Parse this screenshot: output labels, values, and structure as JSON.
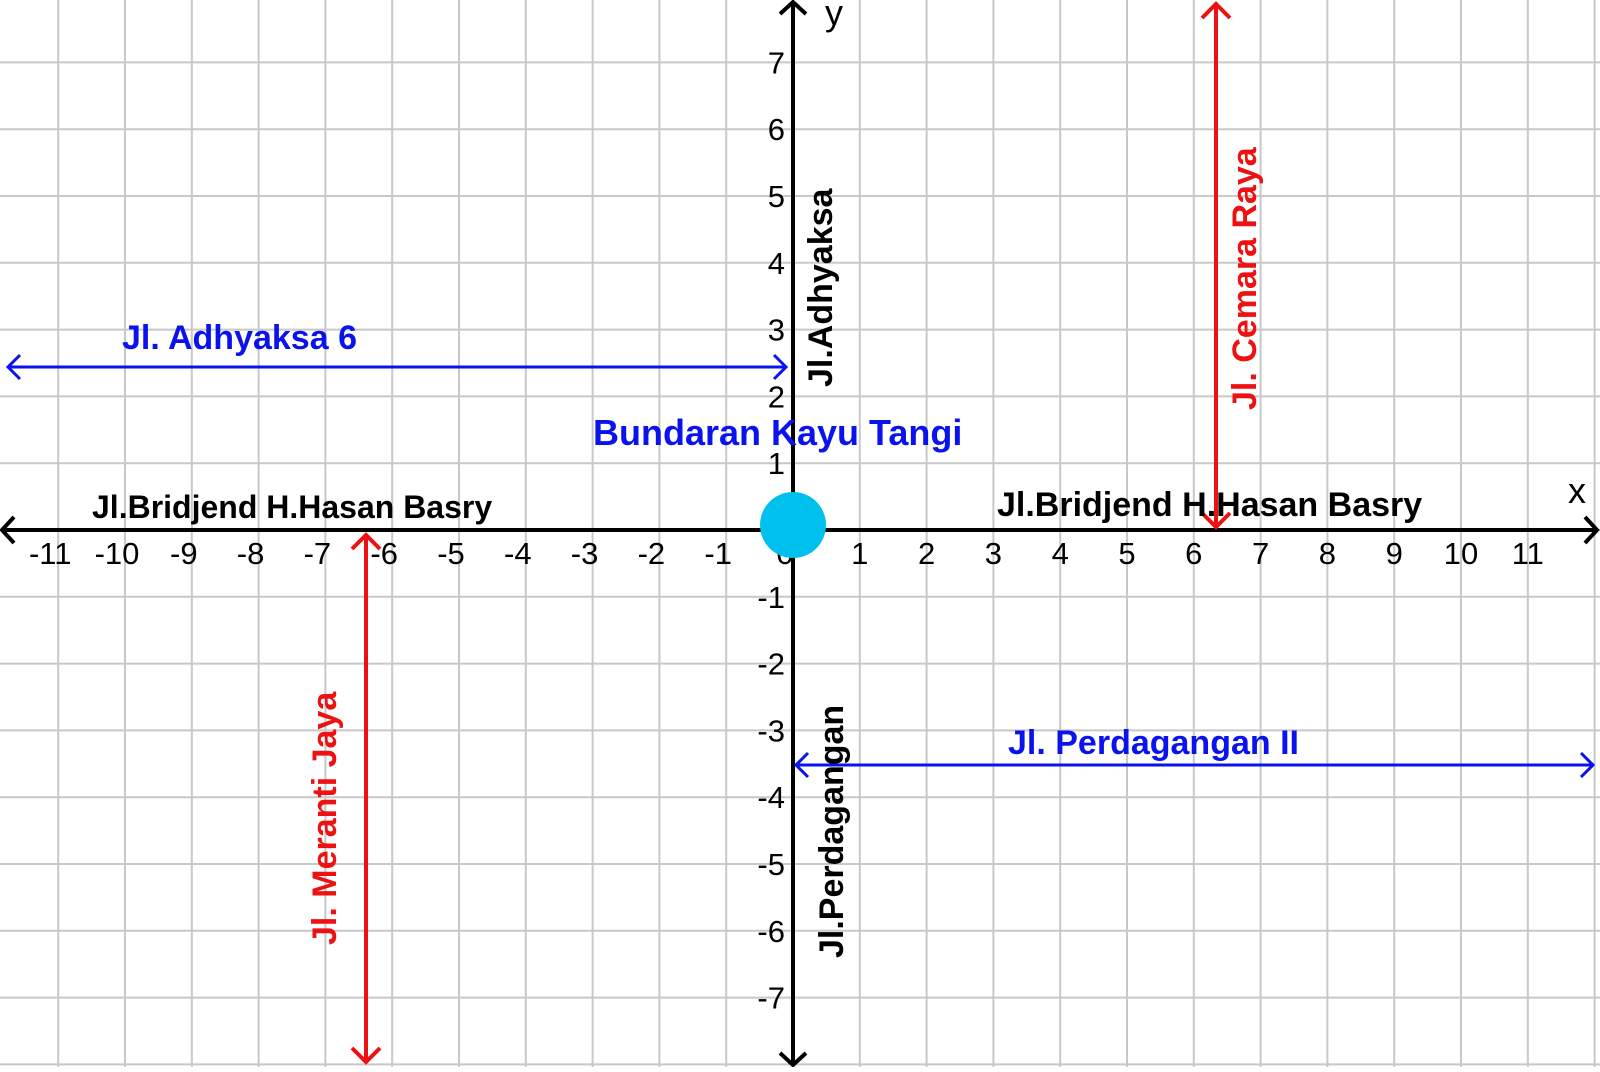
{
  "diagram": {
    "axes": {
      "x_label": "x",
      "y_label": "y",
      "x_ticks": [
        -11,
        -10,
        -9,
        -8,
        -7,
        -6,
        -5,
        -4,
        -3,
        -2,
        -1,
        0,
        1,
        2,
        3,
        4,
        5,
        6,
        7,
        8,
        9,
        10,
        11
      ],
      "y_ticks": [
        -7,
        -6,
        -5,
        -4,
        -3,
        -2,
        -1,
        1,
        2,
        3,
        4,
        5,
        6,
        7
      ],
      "x_range": [
        -12,
        12
      ],
      "y_range": [
        -8,
        8
      ],
      "grid": true
    },
    "colors": {
      "grid": "#c8c8c8",
      "axis": "#000000",
      "blue": "#0a12ee",
      "red": "#ee1111",
      "roundabout": "#00c0ee"
    },
    "roundabout": {
      "label": "Bundaran Kayu Tangi",
      "x": 0,
      "y": 0
    },
    "streets": {
      "x_axis_left": {
        "label": "Jl.Bridjend H.Hasan Basry"
      },
      "x_axis_right": {
        "label": "Jl.Bridjend H.Hasan Basry"
      },
      "y_axis_top": {
        "label": "Jl.Adhyaksa"
      },
      "y_axis_bottom": {
        "label": "Jl.Perdagangan"
      },
      "adhyaksa6": {
        "label": "Jl. Adhyaksa 6",
        "y": 2.45,
        "x_from": -12,
        "x_to": 0
      },
      "perdagangan2": {
        "label": "Jl. Perdagangan II",
        "y": -3.5,
        "x_from": 0,
        "x_to": 12
      },
      "cemara_raya": {
        "label": "Jl. Cemara Raya",
        "x": 6.35,
        "y_from": 0,
        "y_to": 8
      },
      "meranti_jaya": {
        "label": "Jl. Meranti Jaya",
        "x": -6.5,
        "y_from": -8,
        "y_to": 0
      }
    }
  }
}
